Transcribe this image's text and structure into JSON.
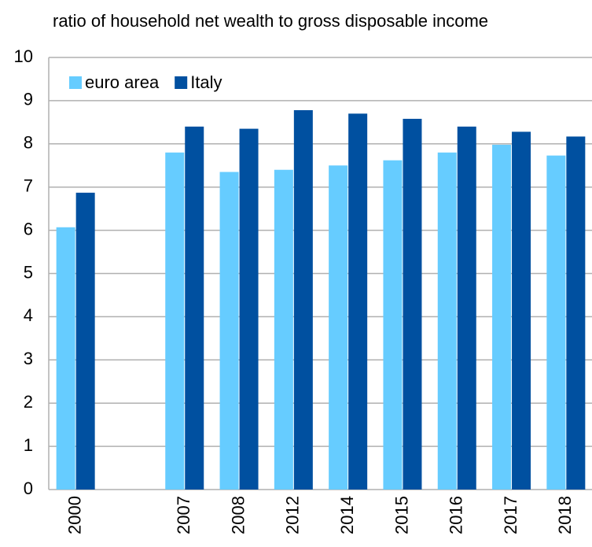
{
  "chart_data": {
    "type": "bar",
    "title": "ratio of household net wealth to gross disposable income",
    "categories": [
      "2000",
      null,
      "2007",
      "2008",
      "2012",
      "2014",
      "2015",
      "2016",
      "2017",
      "2018"
    ],
    "series": [
      {
        "name": "euro area",
        "color": "#66ccff",
        "values": [
          6.07,
          null,
          7.8,
          7.35,
          7.4,
          7.5,
          7.62,
          7.8,
          7.98,
          7.73
        ]
      },
      {
        "name": "Italy",
        "color": "#0050a0",
        "values": [
          6.87,
          null,
          8.4,
          8.35,
          8.78,
          8.7,
          8.58,
          8.4,
          8.28,
          8.17
        ]
      }
    ],
    "ylim": [
      0,
      10
    ],
    "yticks": [
      0,
      1,
      2,
      3,
      4,
      5,
      6,
      7,
      8,
      9,
      10
    ],
    "grid": true,
    "legend": "top-left"
  }
}
